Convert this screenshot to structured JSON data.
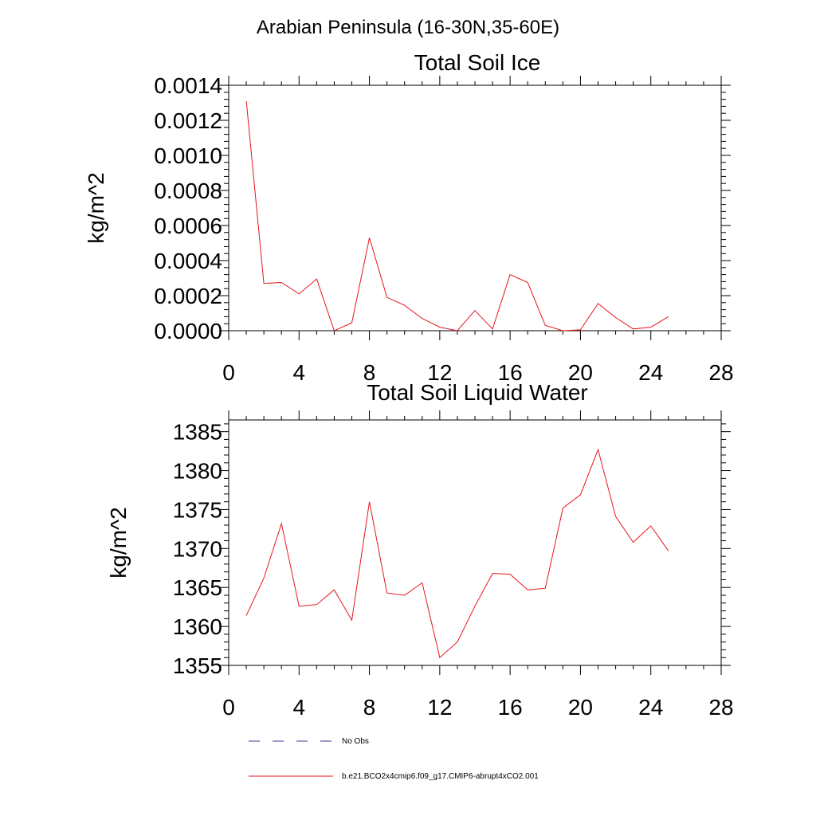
{
  "figure": {
    "suptitle": "Arabian Peninsula (16-30N,35-60E)"
  },
  "colors": {
    "model_line": "#e8141c",
    "obs_line": "#3a3a8c"
  },
  "legend": {
    "items": [
      {
        "label": "No Obs",
        "style": "dashed",
        "color": "#3a3a8c"
      },
      {
        "label": "b.e21.BCO2x4cmip6.f09_g17.CMIP6-abrupt4xCO2.001",
        "style": "solid",
        "color": "#e8141c"
      }
    ]
  },
  "chart_data": [
    {
      "type": "line",
      "title": "Total Soil Ice",
      "xlabel": "",
      "ylabel": "kg/m^2",
      "xlim": [
        0,
        28
      ],
      "ylim": [
        0,
        0.0014
      ],
      "xticks": [
        0,
        4,
        8,
        12,
        16,
        20,
        24,
        28
      ],
      "xtick_labels": [
        "0",
        "4",
        "8",
        "12",
        "16",
        "20",
        "24",
        "28"
      ],
      "yticks": [
        0,
        0.0002,
        0.0004,
        0.0006,
        0.0008,
        0.001,
        0.0012,
        0.0014
      ],
      "ytick_labels": [
        "0.0000",
        "0.0002",
        "0.0004",
        "0.0006",
        "0.0008",
        "0.0010",
        "0.0012",
        "0.0014"
      ],
      "grid": false,
      "series": [
        {
          "name": "b.e21.BCO2x4cmip6.f09_g17.CMIP6-abrupt4xCO2.001",
          "color": "#e8141c",
          "x": [
            1,
            2,
            3,
            4,
            5,
            6,
            7,
            8,
            9,
            10,
            11,
            12,
            13,
            14,
            15,
            16,
            17,
            18,
            19,
            20,
            21,
            22,
            23,
            24,
            25
          ],
          "y": [
            0.00131,
            0.00027,
            0.000275,
            0.00021,
            0.000295,
            0.0,
            4.5e-05,
            0.00053,
            0.00019,
            0.000145,
            7e-05,
            2e-05,
            0.0,
            0.000115,
            1e-05,
            0.00032,
            0.000275,
            3e-05,
            0.0,
            5e-06,
            0.000155,
            7.5e-05,
            1e-05,
            2e-05,
            8e-05
          ]
        }
      ]
    },
    {
      "type": "line",
      "title": "Total Soil Liquid Water",
      "xlabel": "",
      "ylabel": "kg/m^2",
      "xlim": [
        0,
        28
      ],
      "ylim": [
        1355,
        1386.5
      ],
      "xticks": [
        0,
        4,
        8,
        12,
        16,
        20,
        24,
        28
      ],
      "xtick_labels": [
        "0",
        "4",
        "8",
        "12",
        "16",
        "20",
        "24",
        "28"
      ],
      "yticks": [
        1355,
        1360,
        1365,
        1370,
        1375,
        1380,
        1385
      ],
      "ytick_labels": [
        "1355",
        "1360",
        "1365",
        "1370",
        "1375",
        "1380",
        "1385"
      ],
      "grid": false,
      "series": [
        {
          "name": "b.e21.BCO2x4cmip6.f09_g17.CMIP6-abrupt4xCO2.001",
          "color": "#e8141c",
          "x": [
            1,
            2,
            3,
            4,
            5,
            6,
            7,
            8,
            9,
            10,
            11,
            12,
            13,
            14,
            15,
            16,
            17,
            18,
            19,
            20,
            21,
            22,
            23,
            24,
            25
          ],
          "y": [
            1361.4,
            1366.2,
            1373.2,
            1362.6,
            1362.8,
            1364.7,
            1360.8,
            1376.0,
            1364.3,
            1364.0,
            1365.6,
            1356.0,
            1358.0,
            1362.6,
            1366.8,
            1366.7,
            1364.7,
            1364.9,
            1375.2,
            1376.9,
            1382.7,
            1374.1,
            1370.8,
            1372.9,
            1369.7
          ]
        }
      ]
    }
  ]
}
